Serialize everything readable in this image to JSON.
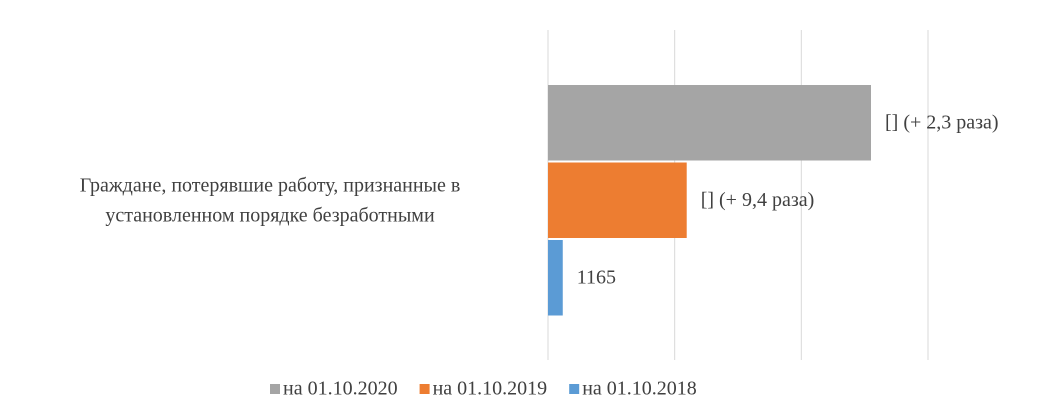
{
  "chart_data": {
    "type": "barh",
    "categories": [
      "Граждане, потерявшие работу, признанные в установленном порядке безработными"
    ],
    "series": [
      {
        "name": "на 01.10.2020",
        "color": "#a5a5a5",
        "values": [
          25500
        ],
        "value_labels": [
          "[] (+ 2,3 раза)"
        ]
      },
      {
        "name": "на 01.10.2019",
        "color": "#ed7d31",
        "values": [
          10951
        ],
        "value_labels": [
          "[] (+ 9,4 раза)"
        ]
      },
      {
        "name": "на 01.10.2018",
        "color": "#5b9bd5",
        "values": [
          1165
        ],
        "value_labels": [
          "1165"
        ]
      }
    ],
    "xlim": [
      0,
      30000
    ],
    "xticks": [
      0,
      10000,
      20000,
      30000
    ],
    "grid": true,
    "legend": "bottom"
  }
}
